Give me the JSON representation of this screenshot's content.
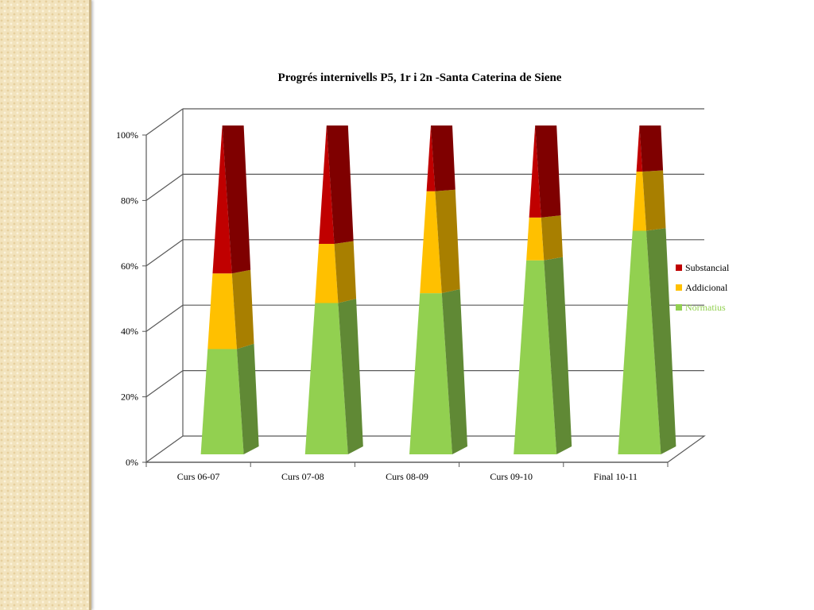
{
  "chart_data": {
    "type": "bar",
    "style": "3d-cone",
    "title": "Progrés internivells P5, 1r i 2n  -Santa Caterina de Siene",
    "xlabel": "",
    "ylabel": "",
    "categories": [
      "Curs 06-07",
      "Curs 07-08",
      "Curs 08-09",
      "Curs 09-10",
      "Final 10-11"
    ],
    "series": [
      {
        "name": "Normatius",
        "color": "#92d050",
        "values": [
          32,
          46,
          49,
          59,
          68
        ]
      },
      {
        "name": "Addicional",
        "color": "#ffc000",
        "values": [
          23,
          18,
          31,
          13,
          18
        ]
      },
      {
        "name": "Substancial",
        "color": "#c00000",
        "values": [
          45,
          36,
          20,
          28,
          14
        ]
      }
    ],
    "stacking": "percent",
    "ylim": [
      0,
      100
    ],
    "yticks": [
      "0%",
      "20%",
      "40%",
      "60%",
      "80%",
      "100%"
    ],
    "grid": true,
    "legend": {
      "placement": "right",
      "entries": [
        "Substancial",
        "Addicional",
        "Normatius"
      ]
    }
  }
}
